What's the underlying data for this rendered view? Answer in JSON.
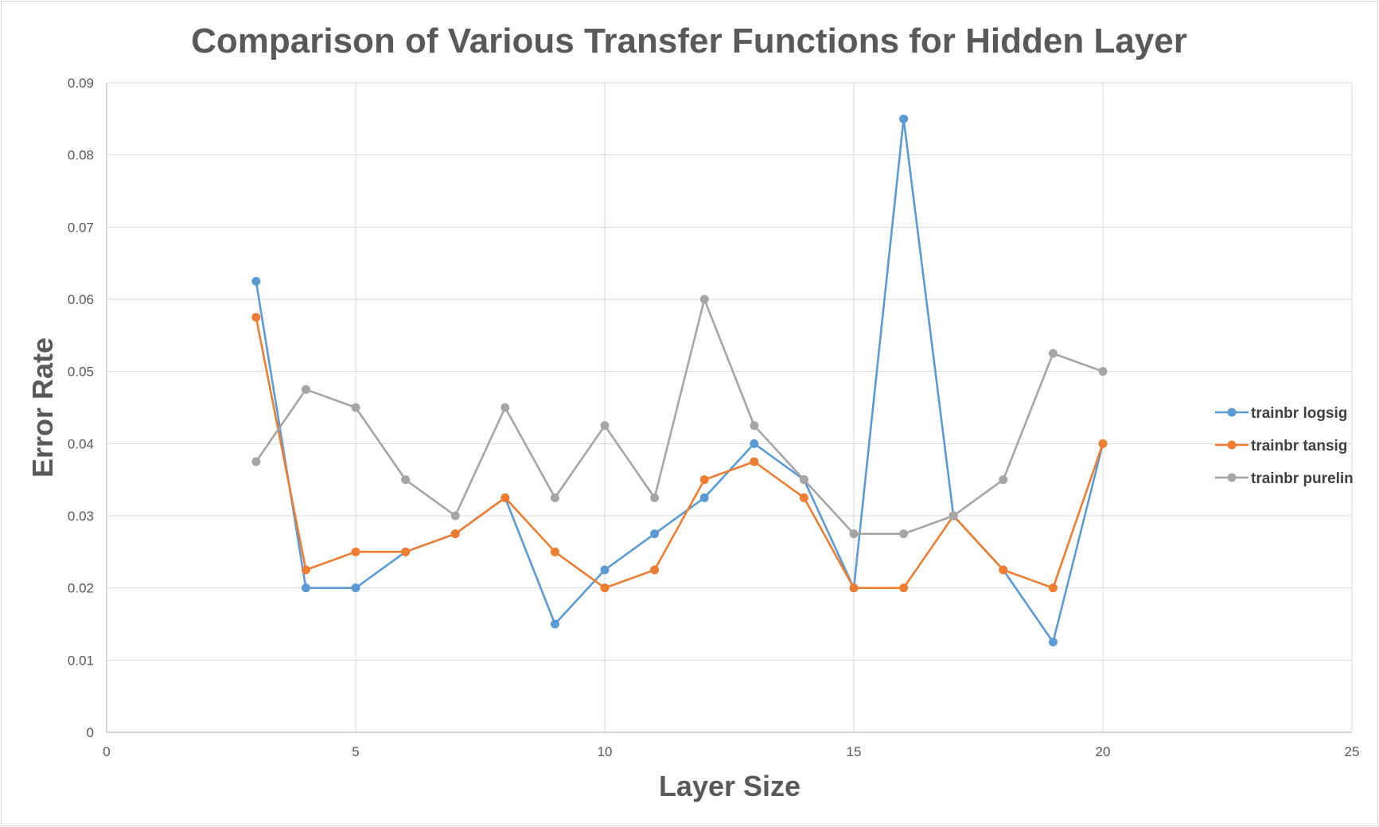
{
  "chart_data": {
    "type": "scatter",
    "title": "Comparison of Various Transfer Functions for Hidden Layer",
    "xlabel": "Layer Size",
    "ylabel": "Error Rate",
    "xlim": [
      0,
      25
    ],
    "ylim": [
      0,
      0.09
    ],
    "x_ticks": [
      0,
      5,
      10,
      15,
      20,
      25
    ],
    "x_tick_labels": [
      "0",
      "5",
      "10",
      "15",
      "20",
      "25"
    ],
    "y_ticks": [
      0,
      0.01,
      0.02,
      0.03,
      0.04,
      0.05,
      0.06,
      0.07,
      0.08,
      0.09
    ],
    "y_tick_labels": [
      "0",
      "0.01",
      "0.02",
      "0.03",
      "0.04",
      "0.05",
      "0.06",
      "0.07",
      "0.08",
      "0.09"
    ],
    "grid": true,
    "legend_position": "right",
    "x": [
      3,
      4,
      5,
      6,
      7,
      8,
      9,
      10,
      11,
      12,
      13,
      14,
      15,
      16,
      17,
      18,
      19,
      20
    ],
    "series": [
      {
        "name": "trainbr logsig",
        "color": "#5b9bd5",
        "values": [
          0.0625,
          0.02,
          0.02,
          0.025,
          0.0275,
          0.0325,
          0.015,
          0.0225,
          0.0275,
          0.0325,
          0.04,
          0.035,
          0.02,
          0.085,
          0.03,
          0.0225,
          0.0125,
          0.04
        ]
      },
      {
        "name": "trainbr tansig",
        "color": "#ed7d31",
        "values": [
          0.0575,
          0.0225,
          0.025,
          0.025,
          0.0275,
          0.0325,
          0.025,
          0.02,
          0.0225,
          0.035,
          0.0375,
          0.0325,
          0.02,
          0.02,
          0.03,
          0.0225,
          0.02,
          0.04
        ]
      },
      {
        "name": "trainbr purelin",
        "color": "#a5a5a5",
        "values": [
          0.0375,
          0.0475,
          0.045,
          0.035,
          0.03,
          0.045,
          0.0325,
          0.0425,
          0.0325,
          0.06,
          0.0425,
          0.035,
          0.0275,
          0.0275,
          0.03,
          0.035,
          0.0525,
          0.05
        ]
      }
    ]
  }
}
